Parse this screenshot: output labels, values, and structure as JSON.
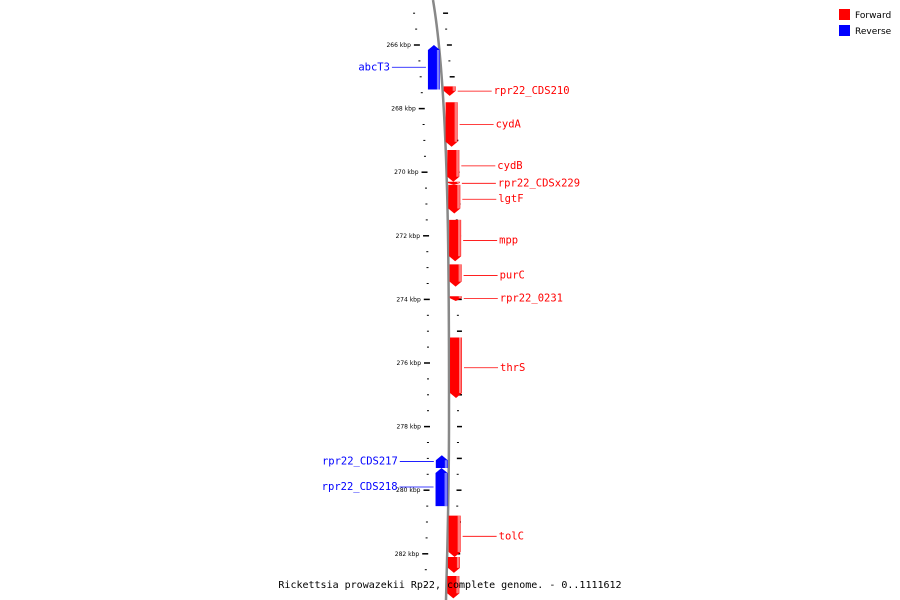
{
  "caption": "Rickettsia prowazekii Rp22, complete genome. - 0..1111612",
  "legend": [
    {
      "label": "Forward",
      "color": "#ff0000"
    },
    {
      "label": "Reverse",
      "color": "#0000ff"
    }
  ],
  "axis": {
    "unit": "kbp",
    "ticks": [
      "266 kbp",
      "268 kbp",
      "270 kbp",
      "272 kbp",
      "274 kbp",
      "276 kbp",
      "278 kbp",
      "280 kbp",
      "282 kbp"
    ]
  },
  "genes": [
    {
      "name": "abcT3",
      "strand": "reverse",
      "start_kbp": 266.0,
      "end_kbp": 267.4
    },
    {
      "name": "rpr22_CDS210",
      "strand": "forward",
      "start_kbp": 267.3,
      "end_kbp": 267.6
    },
    {
      "name": "cydA",
      "strand": "forward",
      "start_kbp": 267.8,
      "end_kbp": 269.2
    },
    {
      "name": "cydB",
      "strand": "forward",
      "start_kbp": 269.3,
      "end_kbp": 270.3
    },
    {
      "name": "rpr22_CDSx229",
      "strand": "forward",
      "start_kbp": 270.3,
      "end_kbp": 270.4
    },
    {
      "name": "lgtF",
      "strand": "forward",
      "start_kbp": 270.4,
      "end_kbp": 271.3
    },
    {
      "name": "mpp",
      "strand": "forward",
      "start_kbp": 271.5,
      "end_kbp": 272.8
    },
    {
      "name": "purC",
      "strand": "forward",
      "start_kbp": 272.9,
      "end_kbp": 273.6
    },
    {
      "name": "rpr22_0231",
      "strand": "forward",
      "start_kbp": 273.9,
      "end_kbp": 274.05
    },
    {
      "name": "thrS",
      "strand": "forward",
      "start_kbp": 275.2,
      "end_kbp": 277.1
    },
    {
      "name": "rpr22_CDS217",
      "strand": "reverse",
      "start_kbp": 278.9,
      "end_kbp": 279.3
    },
    {
      "name": "rpr22_CDS218",
      "strand": "reverse",
      "start_kbp": 279.3,
      "end_kbp": 280.5
    },
    {
      "name": "tolC",
      "strand": "forward",
      "start_kbp": 280.8,
      "end_kbp": 282.1
    },
    {
      "name": "",
      "strand": "forward",
      "start_kbp": 282.1,
      "end_kbp": 282.6
    },
    {
      "name": "",
      "strand": "forward",
      "start_kbp": 282.7,
      "end_kbp": 283.4
    }
  ]
}
